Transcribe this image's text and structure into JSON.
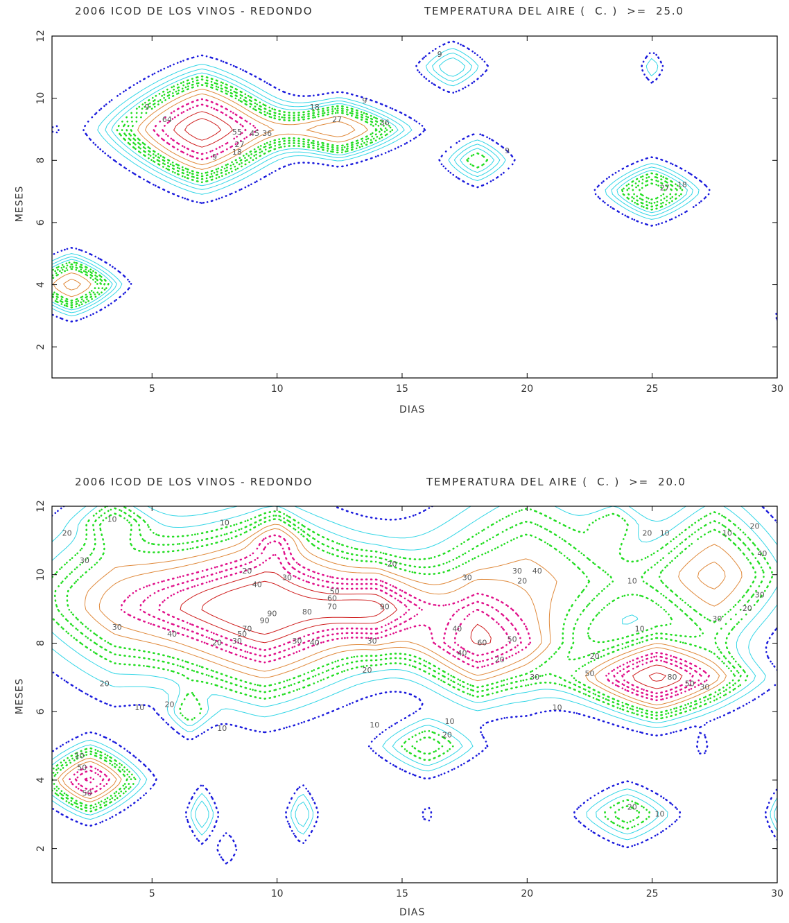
{
  "colors": {
    "frame": "#000000",
    "blue": "#1a1adc",
    "cyan": "#33d6e6",
    "green": "#22dd22",
    "orange": "#e08a3c",
    "magenta": "#e0108a",
    "red": "#d02020",
    "text": "#303030"
  },
  "chart_data": [
    {
      "type": "contour",
      "title_left": "2006 ICOD DE LOS VINOS - REDONDO",
      "title_right": "TEMPERATURA DEL AIRE (  C. )  >=  25.0",
      "xlabel": "DIAS",
      "ylabel": "MESES",
      "xlim": [
        1,
        30
      ],
      "ylim": [
        1,
        12
      ],
      "xticks": [
        5,
        10,
        15,
        20,
        25,
        30
      ],
      "yticks": [
        2,
        4,
        6,
        8,
        10,
        12
      ],
      "grid": false,
      "blobs": [
        {
          "x": 7,
          "y": 9,
          "rx": 3.2,
          "ry": 1.6,
          "peak": 70
        },
        {
          "x": 12.5,
          "y": 9,
          "rx": 2.6,
          "ry": 0.9,
          "peak": 40
        },
        {
          "x": 1.8,
          "y": 4,
          "rx": 1.8,
          "ry": 0.9,
          "peak": 40
        },
        {
          "x": 17,
          "y": 11,
          "rx": 1.4,
          "ry": 0.8,
          "peak": 18
        },
        {
          "x": 18,
          "y": 8,
          "rx": 1.4,
          "ry": 0.8,
          "peak": 20
        },
        {
          "x": 25,
          "y": 7,
          "rx": 1.9,
          "ry": 0.9,
          "peak": 30
        },
        {
          "x": 25,
          "y": 11,
          "rx": 0.5,
          "ry": 0.6,
          "peak": 12
        },
        {
          "x": 1.1,
          "y": 9,
          "rx": 0.25,
          "ry": 0.3,
          "peak": 6
        },
        {
          "x": 27,
          "y": 10,
          "rx": 0.25,
          "ry": 0.3,
          "peak": 6
        },
        {
          "x": 30.2,
          "y": 3,
          "rx": 0.5,
          "ry": 0.6,
          "peak": 7
        }
      ],
      "levels": [
        {
          "value": 5,
          "color": "blue",
          "style": "dotted",
          "width": 2.6
        },
        {
          "value": 9,
          "color": "cyan",
          "style": "solid",
          "width": 1
        },
        {
          "value": 12,
          "color": "cyan",
          "style": "solid",
          "width": 1
        },
        {
          "value": 15,
          "color": "cyan",
          "style": "solid",
          "width": 1
        },
        {
          "value": 18,
          "color": "green",
          "style": "dotted",
          "width": 2.6
        },
        {
          "value": 21,
          "color": "green",
          "style": "dotted",
          "width": 2.6
        },
        {
          "value": 24,
          "color": "green",
          "style": "dotted",
          "width": 2.6
        },
        {
          "value": 27,
          "color": "green",
          "style": "dotted",
          "width": 2.6
        },
        {
          "value": 32,
          "color": "orange",
          "style": "solid",
          "width": 1
        },
        {
          "value": 38,
          "color": "orange",
          "style": "solid",
          "width": 1
        },
        {
          "value": 45,
          "color": "magenta",
          "style": "dotted",
          "width": 2.6
        },
        {
          "value": 52,
          "color": "magenta",
          "style": "dotted",
          "width": 2.6
        },
        {
          "value": 60,
          "color": "red",
          "style": "solid",
          "width": 1
        },
        {
          "value": 66,
          "color": "red",
          "style": "solid",
          "width": 1
        }
      ],
      "labels": [
        {
          "x": 4.8,
          "y": 9.7,
          "text": "9"
        },
        {
          "x": 5.6,
          "y": 9.3,
          "text": "64"
        },
        {
          "x": 8.4,
          "y": 8.9,
          "text": "55"
        },
        {
          "x": 9.1,
          "y": 8.85,
          "text": "45"
        },
        {
          "x": 9.6,
          "y": 8.85,
          "text": "36"
        },
        {
          "x": 8.5,
          "y": 8.5,
          "text": "27"
        },
        {
          "x": 8.4,
          "y": 8.25,
          "text": "18"
        },
        {
          "x": 7.5,
          "y": 8.1,
          "text": "9"
        },
        {
          "x": 11.5,
          "y": 9.7,
          "text": "18"
        },
        {
          "x": 12.4,
          "y": 9.3,
          "text": "27"
        },
        {
          "x": 14.3,
          "y": 9.2,
          "text": "36"
        },
        {
          "x": 13.5,
          "y": 9.9,
          "text": "9"
        },
        {
          "x": 16.5,
          "y": 11.4,
          "text": "9"
        },
        {
          "x": 19.2,
          "y": 8.3,
          "text": "9"
        },
        {
          "x": 25.5,
          "y": 7.1,
          "text": "27"
        },
        {
          "x": 26.2,
          "y": 7.2,
          "text": "18"
        }
      ]
    },
    {
      "type": "contour",
      "title_left": "2006 ICOD DE LOS VINOS - REDONDO",
      "title_right": "TEMPERATURA DEL AIRE (  C. )  >=  20.0",
      "xlabel": "DIAS",
      "ylabel": "MESES",
      "xlim": [
        1,
        30
      ],
      "ylim": [
        1,
        12
      ],
      "xticks": [
        5,
        10,
        15,
        20,
        25,
        30
      ],
      "yticks": [
        2,
        4,
        6,
        8,
        10,
        12
      ],
      "grid": false,
      "blobs": [
        {
          "x": 9.5,
          "y": 9,
          "rx": 5.6,
          "ry": 2.3,
          "peak": 95
        },
        {
          "x": 14,
          "y": 9,
          "rx": 2.4,
          "ry": 1.2,
          "peak": 40
        },
        {
          "x": 3.5,
          "y": 9.5,
          "rx": 4.2,
          "ry": 2.6,
          "peak": 30
        },
        {
          "x": 18,
          "y": 8,
          "rx": 2.8,
          "ry": 1.5,
          "peak": 60
        },
        {
          "x": 20,
          "y": 9.8,
          "rx": 4.8,
          "ry": 2.8,
          "peak": 40
        },
        {
          "x": 25.2,
          "y": 7,
          "rx": 3.2,
          "ry": 1.1,
          "peak": 85
        },
        {
          "x": 27.5,
          "y": 10,
          "rx": 2.8,
          "ry": 2.2,
          "peak": 45
        },
        {
          "x": 2.5,
          "y": 4,
          "rx": 1.8,
          "ry": 0.9,
          "peak": 70
        },
        {
          "x": 16,
          "y": 5,
          "rx": 1.9,
          "ry": 0.8,
          "peak": 28
        },
        {
          "x": 24,
          "y": 3,
          "rx": 1.8,
          "ry": 0.8,
          "peak": 28
        },
        {
          "x": 7,
          "y": 3,
          "rx": 0.6,
          "ry": 0.8,
          "peak": 20
        },
        {
          "x": 11,
          "y": 3,
          "rx": 0.6,
          "ry": 0.8,
          "peak": 20
        },
        {
          "x": 30.2,
          "y": 3,
          "rx": 0.6,
          "ry": 0.8,
          "peak": 22
        },
        {
          "x": 6.5,
          "y": 6,
          "rx": 0.9,
          "ry": 0.7,
          "peak": 20
        },
        {
          "x": 8,
          "y": 2,
          "rx": 0.5,
          "ry": 0.6,
          "peak": 10
        },
        {
          "x": 16,
          "y": 3,
          "rx": 0.3,
          "ry": 0.4,
          "peak": 8
        },
        {
          "x": 27,
          "y": 5,
          "rx": 0.3,
          "ry": 0.5,
          "peak": 8
        },
        {
          "x": 3.5,
          "y": 11.5,
          "rx": 1.3,
          "ry": 0.8,
          "peak": 20
        },
        {
          "x": 10,
          "y": 11,
          "rx": 1.0,
          "ry": 0.8,
          "peak": 25
        },
        {
          "x": 23.5,
          "y": 11.5,
          "rx": 1.2,
          "ry": 0.8,
          "peak": 15
        }
      ],
      "levels": [
        {
          "value": 5,
          "color": "blue",
          "style": "dotted",
          "width": 2.6
        },
        {
          "value": 10,
          "color": "cyan",
          "style": "solid",
          "width": 1
        },
        {
          "value": 15,
          "color": "cyan",
          "style": "solid",
          "width": 1
        },
        {
          "value": 20,
          "color": "green",
          "style": "dotted",
          "width": 2.6
        },
        {
          "value": 25,
          "color": "green",
          "style": "dotted",
          "width": 2.6
        },
        {
          "value": 30,
          "color": "green",
          "style": "dotted",
          "width": 2.6
        },
        {
          "value": 38,
          "color": "orange",
          "style": "solid",
          "width": 1
        },
        {
          "value": 45,
          "color": "orange",
          "style": "solid",
          "width": 1
        },
        {
          "value": 55,
          "color": "magenta",
          "style": "dotted",
          "width": 2.6
        },
        {
          "value": 62,
          "color": "magenta",
          "style": "dotted",
          "width": 2.6
        },
        {
          "value": 69,
          "color": "magenta",
          "style": "dotted",
          "width": 2.6
        },
        {
          "value": 77,
          "color": "red",
          "style": "solid",
          "width": 1
        },
        {
          "value": 85,
          "color": "red",
          "style": "solid",
          "width": 1
        }
      ],
      "labels": [
        {
          "x": 1.6,
          "y": 11.2,
          "text": "20"
        },
        {
          "x": 2.3,
          "y": 10.4,
          "text": "30"
        },
        {
          "x": 3.4,
          "y": 11.6,
          "text": "10"
        },
        {
          "x": 7.9,
          "y": 11.5,
          "text": "10"
        },
        {
          "x": 8.8,
          "y": 10.1,
          "text": "20"
        },
        {
          "x": 9.2,
          "y": 9.7,
          "text": "40"
        },
        {
          "x": 10.4,
          "y": 9.9,
          "text": "30"
        },
        {
          "x": 12.3,
          "y": 9.5,
          "text": "50"
        },
        {
          "x": 12.2,
          "y": 9.3,
          "text": "60"
        },
        {
          "x": 12.2,
          "y": 9.05,
          "text": "70"
        },
        {
          "x": 11.2,
          "y": 8.9,
          "text": "80"
        },
        {
          "x": 9.8,
          "y": 8.85,
          "text": "90"
        },
        {
          "x": 9.5,
          "y": 8.65,
          "text": "90"
        },
        {
          "x": 14.3,
          "y": 9.05,
          "text": "90"
        },
        {
          "x": 8.8,
          "y": 8.4,
          "text": "70"
        },
        {
          "x": 8.6,
          "y": 8.25,
          "text": "50"
        },
        {
          "x": 8.4,
          "y": 8.05,
          "text": "30"
        },
        {
          "x": 3.6,
          "y": 8.45,
          "text": "30"
        },
        {
          "x": 5.8,
          "y": 8.25,
          "text": "40"
        },
        {
          "x": 7.6,
          "y": 8.0,
          "text": "20"
        },
        {
          "x": 10.8,
          "y": 8.05,
          "text": "30"
        },
        {
          "x": 11.5,
          "y": 8.0,
          "text": "40"
        },
        {
          "x": 13.8,
          "y": 8.05,
          "text": "30"
        },
        {
          "x": 13.6,
          "y": 7.2,
          "text": "20"
        },
        {
          "x": 14.6,
          "y": 10.3,
          "text": "20"
        },
        {
          "x": 17.6,
          "y": 9.9,
          "text": "30"
        },
        {
          "x": 19.6,
          "y": 10.1,
          "text": "30"
        },
        {
          "x": 19.8,
          "y": 9.8,
          "text": "20"
        },
        {
          "x": 20.4,
          "y": 10.1,
          "text": "40"
        },
        {
          "x": 17.2,
          "y": 8.4,
          "text": "40"
        },
        {
          "x": 18.2,
          "y": 8.0,
          "text": "60"
        },
        {
          "x": 19.4,
          "y": 8.1,
          "text": "50"
        },
        {
          "x": 17.4,
          "y": 7.7,
          "text": "40"
        },
        {
          "x": 18.9,
          "y": 7.5,
          "text": "20"
        },
        {
          "x": 20.3,
          "y": 7.0,
          "text": "30"
        },
        {
          "x": 21.2,
          "y": 6.1,
          "text": "10"
        },
        {
          "x": 24.5,
          "y": 8.4,
          "text": "10"
        },
        {
          "x": 27.6,
          "y": 8.7,
          "text": "30"
        },
        {
          "x": 22.7,
          "y": 7.6,
          "text": "20"
        },
        {
          "x": 22.5,
          "y": 7.1,
          "text": "50"
        },
        {
          "x": 25.8,
          "y": 7.0,
          "text": "80"
        },
        {
          "x": 26.5,
          "y": 6.8,
          "text": "50"
        },
        {
          "x": 27.1,
          "y": 6.7,
          "text": "30"
        },
        {
          "x": 24.2,
          "y": 9.8,
          "text": "10"
        },
        {
          "x": 24.8,
          "y": 11.2,
          "text": "20"
        },
        {
          "x": 25.5,
          "y": 11.2,
          "text": "10"
        },
        {
          "x": 29.4,
          "y": 10.6,
          "text": "40"
        },
        {
          "x": 29.3,
          "y": 9.4,
          "text": "30"
        },
        {
          "x": 28.8,
          "y": 9.0,
          "text": "20"
        },
        {
          "x": 28.0,
          "y": 11.2,
          "text": "10"
        },
        {
          "x": 29.1,
          "y": 11.4,
          "text": "20"
        },
        {
          "x": 3.1,
          "y": 6.8,
          "text": "20"
        },
        {
          "x": 4.5,
          "y": 6.1,
          "text": "10"
        },
        {
          "x": 5.7,
          "y": 6.2,
          "text": "20"
        },
        {
          "x": 7.8,
          "y": 5.5,
          "text": "10"
        },
        {
          "x": 13.9,
          "y": 5.6,
          "text": "10"
        },
        {
          "x": 2.1,
          "y": 4.7,
          "text": "10"
        },
        {
          "x": 2.2,
          "y": 4.35,
          "text": "50"
        },
        {
          "x": 2.4,
          "y": 3.6,
          "text": "50"
        },
        {
          "x": 16.8,
          "y": 5.3,
          "text": "20"
        },
        {
          "x": 16.9,
          "y": 5.7,
          "text": "10"
        },
        {
          "x": 24.2,
          "y": 3.2,
          "text": "20"
        },
        {
          "x": 25.3,
          "y": 3.0,
          "text": "10"
        }
      ]
    }
  ]
}
